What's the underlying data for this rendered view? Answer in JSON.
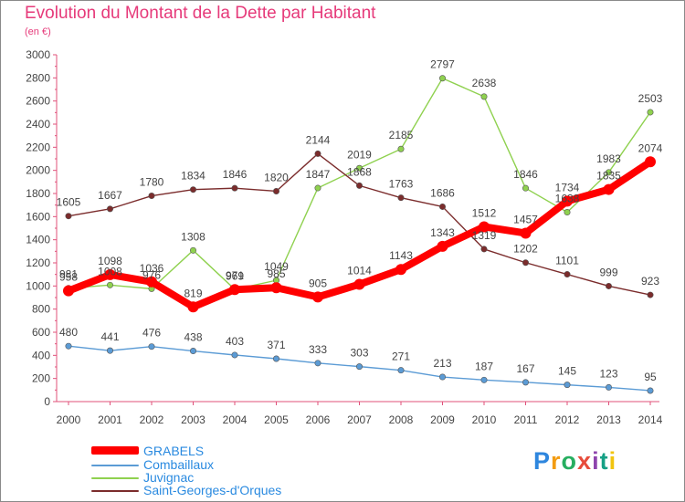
{
  "header": {
    "title": "Evolution du Montant de la Dette par Habitant",
    "unit": "(en €)"
  },
  "logo": {
    "text": "Proxiti",
    "colors": [
      "#2e86de",
      "#f39c12",
      "#27ae60",
      "#e74c3c",
      "#8e44ad",
      "#16a085",
      "#f1c40f"
    ]
  },
  "chart_data": {
    "type": "line",
    "title": "Evolution du Montant de la Dette par Habitant",
    "subtitle": "(en €)",
    "xlabel": "",
    "ylabel": "",
    "ylim": [
      0,
      3000
    ],
    "yticks": [
      0,
      200,
      400,
      600,
      800,
      1000,
      1200,
      1400,
      1600,
      1800,
      2000,
      2200,
      2400,
      2600,
      2800,
      3000
    ],
    "grid": false,
    "legend_position": "bottom-left",
    "x": [
      "2000",
      "2001",
      "2002",
      "2003",
      "2004",
      "2005",
      "2006",
      "2007",
      "2008",
      "2009",
      "2010",
      "2011",
      "2012",
      "2013",
      "2014"
    ],
    "series": [
      {
        "name": "GRABELS",
        "color": "#ff0000",
        "values": [
          958,
          1098,
          1036,
          819,
          969,
          985,
          905,
          1014,
          1143,
          1343,
          1512,
          1457,
          1734,
          1835,
          2074
        ]
      },
      {
        "name": "Combaillaux",
        "color": "#5b9bd5",
        "values": [
          480,
          441,
          476,
          438,
          403,
          371,
          333,
          303,
          271,
          213,
          187,
          167,
          145,
          123,
          95
        ]
      },
      {
        "name": "Juvignac",
        "color": "#8fd14f",
        "values": [
          981,
          1008,
          976,
          1308,
          971,
          1049,
          1847,
          2019,
          2185,
          2797,
          2638,
          1846,
          1638,
          1983,
          2503
        ]
      },
      {
        "name": "Saint-Georges-d'Orques",
        "color": "#7b2c2c",
        "values": [
          1605,
          1667,
          1780,
          1834,
          1846,
          1820,
          2144,
          1868,
          1763,
          1686,
          1319,
          1202,
          1101,
          999,
          923
        ]
      }
    ]
  }
}
